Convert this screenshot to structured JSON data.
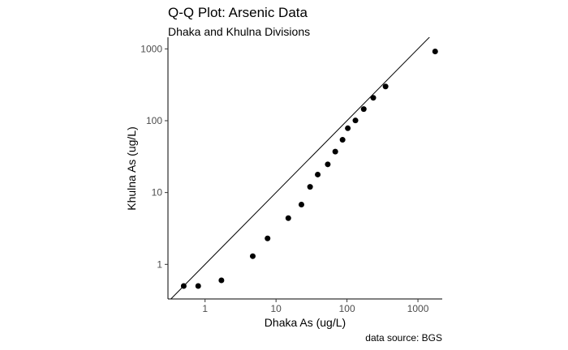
{
  "chart_data": {
    "type": "scatter",
    "title": "Q-Q Plot: Arsenic Data",
    "subtitle": "Dhaka and Khulna Divisions",
    "caption": "data source: BGS",
    "xlabel": "Dhaka As (ug/L)",
    "ylabel": "Khulna As (ug/L)",
    "x_scale": "log10",
    "y_scale": "log10",
    "xlim": [
      0.3,
      2200
    ],
    "ylim": [
      0.33,
      1450
    ],
    "x_ticks": [
      1,
      10,
      100,
      1000
    ],
    "x_tick_labels": [
      "1",
      "10",
      "100",
      "1000"
    ],
    "y_ticks": [
      1,
      10,
      100,
      1000
    ],
    "y_tick_labels": [
      "1",
      "10",
      "100",
      "1000"
    ],
    "grid": false,
    "reference_line": "y = x",
    "points": {
      "x": [
        0.5,
        0.8,
        1.7,
        4.7,
        7.6,
        14.9,
        22.8,
        30.2,
        38.7,
        53.6,
        68.4,
        86.6,
        102.7,
        131.6,
        172.2,
        234.8,
        349.7,
        1749
      ],
      "y": [
        0.5,
        0.5,
        0.6,
        1.3,
        2.3,
        4.4,
        6.8,
        12,
        17.8,
        24.7,
        37.1,
        54.2,
        78.5,
        100.8,
        145.1,
        208.4,
        299.3,
        919.6
      ]
    }
  }
}
